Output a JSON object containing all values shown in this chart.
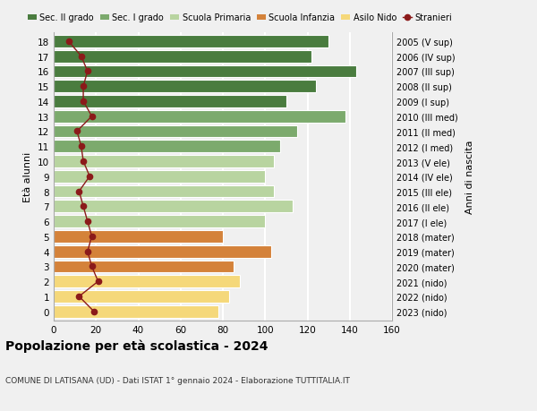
{
  "ages": [
    18,
    17,
    16,
    15,
    14,
    13,
    12,
    11,
    10,
    9,
    8,
    7,
    6,
    5,
    4,
    3,
    2,
    1,
    0
  ],
  "bar_values": [
    130,
    122,
    143,
    124,
    110,
    138,
    115,
    107,
    104,
    100,
    104,
    113,
    100,
    80,
    103,
    85,
    88,
    83,
    78
  ],
  "stranieri_values": [
    7,
    13,
    16,
    14,
    14,
    18,
    11,
    13,
    14,
    17,
    12,
    14,
    16,
    18,
    16,
    18,
    21,
    12,
    19
  ],
  "right_labels": [
    "2005 (V sup)",
    "2006 (IV sup)",
    "2007 (III sup)",
    "2008 (II sup)",
    "2009 (I sup)",
    "2010 (III med)",
    "2011 (II med)",
    "2012 (I med)",
    "2013 (V ele)",
    "2014 (IV ele)",
    "2015 (III ele)",
    "2016 (II ele)",
    "2017 (I ele)",
    "2018 (mater)",
    "2019 (mater)",
    "2020 (mater)",
    "2021 (nido)",
    "2022 (nido)",
    "2023 (nido)"
  ],
  "bar_colors": [
    "#4a7c3f",
    "#4a7c3f",
    "#4a7c3f",
    "#4a7c3f",
    "#4a7c3f",
    "#7caa6d",
    "#7caa6d",
    "#7caa6d",
    "#b8d4a0",
    "#b8d4a0",
    "#b8d4a0",
    "#b8d4a0",
    "#b8d4a0",
    "#d4823a",
    "#d4823a",
    "#d4823a",
    "#f5d87a",
    "#f5d87a",
    "#f5d87a"
  ],
  "legend_labels": [
    "Sec. II grado",
    "Sec. I grado",
    "Scuola Primaria",
    "Scuola Infanzia",
    "Asilo Nido",
    "Stranieri"
  ],
  "legend_colors": [
    "#4a7c3f",
    "#7caa6d",
    "#b8d4a0",
    "#d4823a",
    "#f5d87a",
    "#9b1c1c"
  ],
  "title": "Popolazione per età scolastica - 2024",
  "subtitle": "COMUNE DI LATISANA (UD) - Dati ISTAT 1° gennaio 2024 - Elaborazione TUTTITALIA.IT",
  "ylabel": "Età alunni",
  "right_ylabel": "Anni di nascita",
  "xlim": [
    0,
    160
  ],
  "xticks": [
    0,
    20,
    40,
    60,
    80,
    100,
    120,
    140,
    160
  ],
  "stranieri_color": "#8b1a1a",
  "background_color": "#f0f0f0",
  "grid_color": "#ffffff"
}
